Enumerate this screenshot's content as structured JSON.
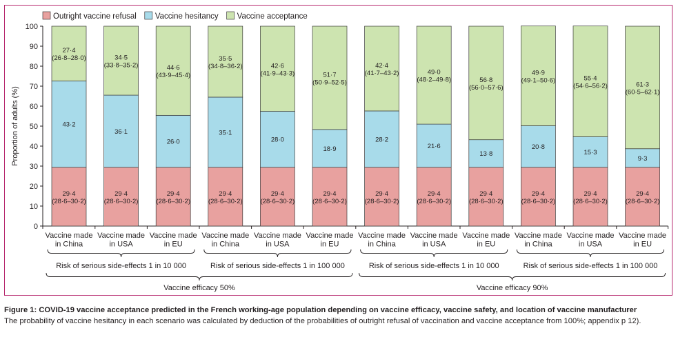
{
  "colors": {
    "refusal": "#e8a19f",
    "hesitancy": "#a8dbea",
    "acceptance": "#cde4b0",
    "frame": "#b5246b"
  },
  "chart_data": {
    "type": "bar",
    "stacked": true,
    "ylabel": "Proportion of adults (%)",
    "ylim": [
      0,
      100
    ],
    "yticks": [
      0,
      10,
      20,
      30,
      40,
      50,
      60,
      70,
      80,
      90,
      100
    ],
    "grid": false,
    "legend_position": "top-left",
    "categories": [
      "Vaccine made in China",
      "Vaccine made in USA",
      "Vaccine made in EU",
      "Vaccine made in China",
      "Vaccine made in USA",
      "Vaccine made in EU",
      "Vaccine made in China",
      "Vaccine made in USA",
      "Vaccine made in EU",
      "Vaccine made in China",
      "Vaccine made in USA",
      "Vaccine made in EU"
    ],
    "category_labels": [
      [
        "Vaccine made",
        "in China"
      ],
      [
        "Vaccine made",
        "in USA"
      ],
      [
        "Vaccine made",
        "in EU"
      ],
      [
        "Vaccine made",
        "in China"
      ],
      [
        "Vaccine made",
        "in USA"
      ],
      [
        "Vaccine made",
        "in EU"
      ],
      [
        "Vaccine made",
        "in China"
      ],
      [
        "Vaccine made",
        "in USA"
      ],
      [
        "Vaccine made",
        "in EU"
      ],
      [
        "Vaccine made",
        "in China"
      ],
      [
        "Vaccine made",
        "in USA"
      ],
      [
        "Vaccine made",
        "in EU"
      ]
    ],
    "series": [
      {
        "name": "Outright vaccine refusal",
        "values": [
          29.4,
          29.4,
          29.4,
          29.4,
          29.4,
          29.4,
          29.4,
          29.4,
          29.4,
          29.4,
          29.4,
          29.4
        ],
        "labels": [
          "29·4",
          "29·4",
          "29·4",
          "29·4",
          "29·4",
          "29·4",
          "29·4",
          "29·4",
          "29·4",
          "29·4",
          "29·4",
          "29·4"
        ],
        "ci_labels": [
          "(28·6–30·2)",
          "(28·6–30·2)",
          "(28·6–30·2)",
          "(28·6–30·2)",
          "(28·6–30·2)",
          "(28·6–30·2)",
          "(28·6–30·2)",
          "(28·6–30·2)",
          "(28·6–30·2)",
          "(28·6–30·2)",
          "(28·6–30·2)",
          "(28·6–30·2)"
        ]
      },
      {
        "name": "Vaccine hesitancy",
        "values": [
          43.2,
          36.1,
          26.0,
          35.1,
          28.0,
          18.9,
          28.2,
          21.6,
          13.8,
          20.8,
          15.3,
          9.3
        ],
        "labels": [
          "43·2",
          "36·1",
          "26·0",
          "35·1",
          "28·0",
          "18·9",
          "28·2",
          "21·6",
          "13·8",
          "20·8",
          "15·3",
          "9·3"
        ],
        "ci_labels": [
          "",
          "",
          "",
          "",
          "",
          "",
          "",
          "",
          "",
          "",
          "",
          ""
        ]
      },
      {
        "name": "Vaccine acceptance",
        "values": [
          27.4,
          34.5,
          44.6,
          35.5,
          42.6,
          51.7,
          42.4,
          49.0,
          56.8,
          49.9,
          55.4,
          61.3
        ],
        "labels": [
          "27·4",
          "34·5",
          "44·6",
          "35·5",
          "42·6",
          "51·7",
          "42·4",
          "49·0",
          "56·8",
          "49·9",
          "55·4",
          "61·3"
        ],
        "ci_labels": [
          "(26·8–28·0)",
          "(33·8–35·2)",
          "(43·9–45·4)",
          "(34·8–36·2)",
          "(41·9–43·3)",
          "(50·9–52·5)",
          "(41·7–43·2)",
          "(48·2–49·8)",
          "(56·0–57·6)",
          "(49·1–50·6)",
          "(54·6–56·2)",
          "(60·5–62·1)"
        ]
      }
    ],
    "groups": [
      {
        "label": "Risk of serious side-effects 1 in 10 000",
        "span": [
          0,
          2
        ]
      },
      {
        "label": "Risk of serious side-effects 1 in 100 000",
        "span": [
          3,
          5
        ]
      },
      {
        "label": "Risk of serious side-effects 1 in 10 000",
        "span": [
          6,
          8
        ]
      },
      {
        "label": "Risk of serious side-effects 1 in 100 000",
        "span": [
          9,
          11
        ]
      }
    ],
    "supergroups": [
      {
        "label": "Vaccine efficacy 50%",
        "span": [
          0,
          5
        ]
      },
      {
        "label": "Vaccine efficacy 90%",
        "span": [
          6,
          11
        ]
      }
    ]
  },
  "caption": {
    "title": "Figure 1: COVID-19 vaccine acceptance predicted in the French working-age population depending on vaccine efficacy, vaccine safety, and location of vaccine manufacturer",
    "text": "The probability of vaccine hesitancy in each scenario was calculated by deduction of the probabilities of outright refusal of vaccination and vaccine acceptance from 100%; appendix p 12)."
  }
}
